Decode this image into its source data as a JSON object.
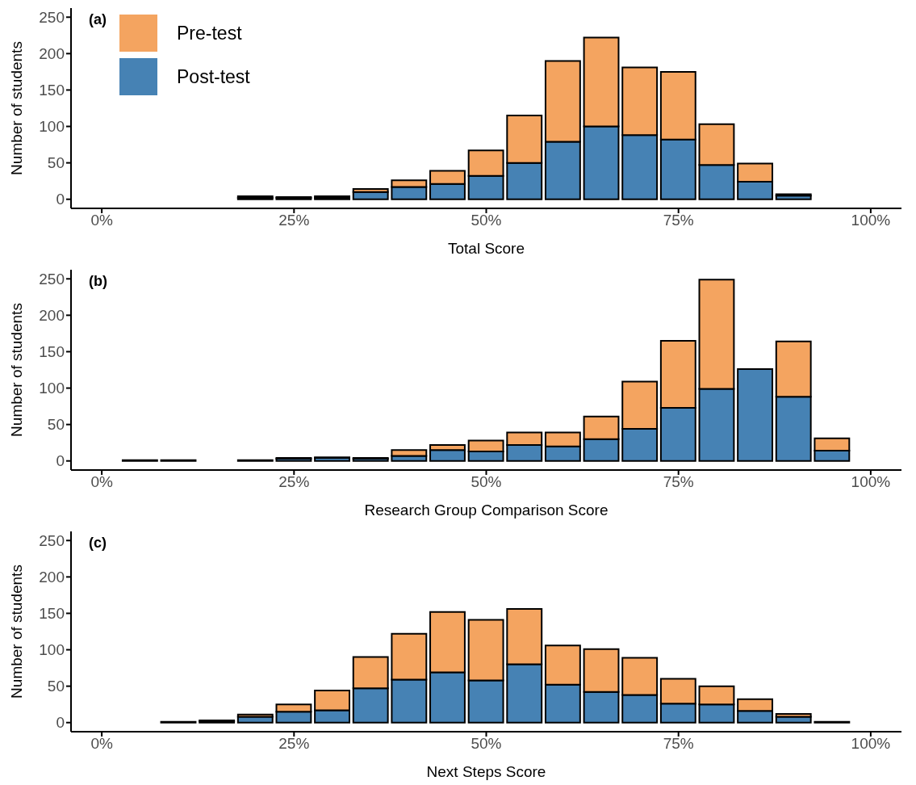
{
  "chart_data": [
    {
      "type": "bar",
      "title": "(a)",
      "xlabel": "Total Score",
      "ylabel": "Number of students",
      "stacked": true,
      "legend": "top left",
      "grid": false,
      "x": [
        5,
        10,
        15,
        20,
        25,
        30,
        35,
        40,
        45,
        50,
        55,
        60,
        65,
        70,
        75,
        80,
        85,
        90,
        95
      ],
      "series": [
        {
          "name": "Post-test",
          "color": "#4682b4",
          "values": [
            0,
            0,
            0,
            2,
            2,
            2,
            10,
            17,
            21,
            32,
            50,
            79,
            100,
            88,
            82,
            47,
            24,
            5,
            0
          ]
        },
        {
          "name": "Pre-test",
          "color": "#f4a460",
          "values": [
            0,
            0,
            0,
            2,
            1,
            2,
            4,
            9,
            18,
            35,
            65,
            111,
            122,
            93,
            93,
            56,
            25,
            2,
            0
          ]
        }
      ],
      "xlim": [
        -4,
        104
      ],
      "xticks": [
        {
          "value": 0,
          "label": "0%"
        },
        {
          "value": 25,
          "label": "25%"
        },
        {
          "value": 50,
          "label": "50%"
        },
        {
          "value": 75,
          "label": "75%"
        },
        {
          "value": 100,
          "label": "100%"
        }
      ],
      "ylim": [
        -12.5,
        262.5
      ],
      "yticks": [
        0,
        50,
        100,
        150,
        200,
        250
      ]
    },
    {
      "type": "bar",
      "title": "(b)",
      "xlabel": "Research Group Comparison Score",
      "ylabel": "Number of students",
      "stacked": true,
      "grid": false,
      "x": [
        5,
        10,
        15,
        20,
        25,
        30,
        35,
        40,
        45,
        50,
        55,
        60,
        65,
        70,
        75,
        80,
        85,
        90,
        95
      ],
      "series": [
        {
          "color": "#4682b4",
          "values": [
            1,
            1,
            0,
            1,
            3,
            4,
            3,
            7,
            15,
            13,
            22,
            20,
            30,
            44,
            73,
            99,
            126,
            88,
            14
          ]
        },
        {
          "color": "#f4a460",
          "values": [
            0,
            0,
            0,
            0,
            1,
            1,
            1,
            8,
            7,
            15,
            17,
            19,
            31,
            65,
            92,
            150,
            0,
            76,
            17
          ]
        }
      ],
      "xlim": [
        -4,
        104
      ],
      "xticks": [
        {
          "value": 0,
          "label": "0%"
        },
        {
          "value": 25,
          "label": "25%"
        },
        {
          "value": 50,
          "label": "50%"
        },
        {
          "value": 75,
          "label": "75%"
        },
        {
          "value": 100,
          "label": "100%"
        }
      ],
      "ylim": [
        -12.5,
        262.5
      ],
      "yticks": [
        0,
        50,
        100,
        150,
        200,
        250
      ]
    },
    {
      "type": "bar",
      "title": "(c)",
      "xlabel": "Next Steps Score",
      "ylabel": "Number of students",
      "stacked": true,
      "grid": false,
      "x": [
        5,
        10,
        15,
        20,
        25,
        30,
        35,
        40,
        45,
        50,
        55,
        60,
        65,
        70,
        75,
        80,
        85,
        90,
        95
      ],
      "series": [
        {
          "color": "#4682b4",
          "values": [
            0,
            1,
            2,
            8,
            15,
            17,
            47,
            59,
            69,
            58,
            80,
            52,
            42,
            38,
            26,
            25,
            16,
            8,
            1
          ]
        },
        {
          "color": "#f4a460",
          "values": [
            0,
            0,
            1,
            3,
            10,
            27,
            43,
            63,
            83,
            83,
            76,
            54,
            59,
            51,
            34,
            25,
            16,
            4,
            0
          ]
        }
      ],
      "xlim": [
        -4,
        104
      ],
      "xticks": [
        {
          "value": 0,
          "label": "0%"
        },
        {
          "value": 25,
          "label": "25%"
        },
        {
          "value": 50,
          "label": "50%"
        },
        {
          "value": 75,
          "label": "75%"
        },
        {
          "value": 100,
          "label": "100%"
        }
      ],
      "ylim": [
        -12.5,
        262.5
      ],
      "yticks": [
        0,
        50,
        100,
        150,
        200,
        250
      ]
    }
  ]
}
